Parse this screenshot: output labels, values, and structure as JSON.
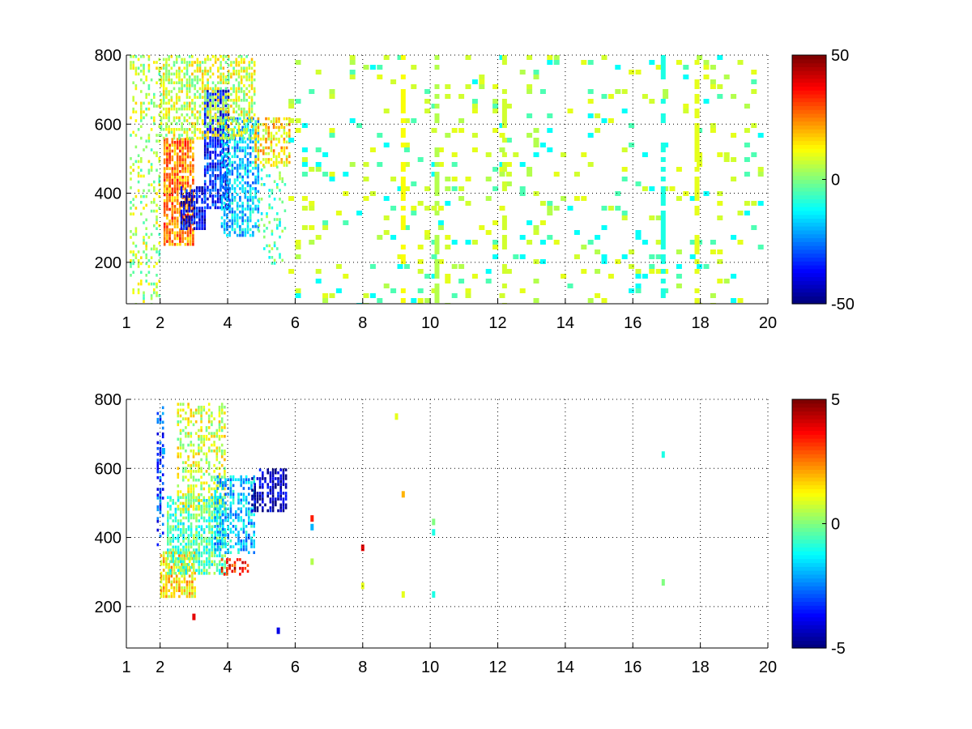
{
  "chart_data": [
    {
      "type": "heatmap",
      "title": "",
      "xlabel": "",
      "ylabel": "",
      "xlim": [
        1,
        20
      ],
      "ylim": [
        80,
        800
      ],
      "x_ticks": [
        1,
        2,
        4,
        6,
        8,
        10,
        12,
        14,
        16,
        18,
        20
      ],
      "x_tick_labels": [
        "1",
        "2",
        "4",
        "6",
        "8",
        "10",
        "12",
        "14",
        "16",
        "18",
        "20"
      ],
      "y_ticks": [
        200,
        400,
        600,
        800
      ],
      "y_tick_labels": [
        "200",
        "400",
        "600",
        "800"
      ],
      "grid": true,
      "colormap": "jet",
      "colorbar": {
        "range": [
          -50,
          50
        ],
        "ticks": [
          -50,
          0,
          50
        ],
        "tick_labels": [
          "-50",
          "0",
          "50"
        ]
      },
      "regions": [
        {
          "x": [
            2.1,
            3.0
          ],
          "y": [
            250,
            560
          ],
          "value": 25,
          "density": 0.8
        },
        {
          "x": [
            2.6,
            3.3
          ],
          "y": [
            300,
            420
          ],
          "value": -40,
          "density": 0.7
        },
        {
          "x": [
            3.3,
            4.0
          ],
          "y": [
            360,
            700
          ],
          "value": -35,
          "density": 0.75
        },
        {
          "x": [
            3.8,
            4.9
          ],
          "y": [
            280,
            620
          ],
          "value": -18,
          "density": 0.6
        },
        {
          "x": [
            2.0,
            4.8
          ],
          "y": [
            560,
            800
          ],
          "value": 8,
          "density": 0.55
        },
        {
          "x": [
            4.8,
            5.8
          ],
          "y": [
            480,
            620
          ],
          "value": 15,
          "density": 0.6
        },
        {
          "x": [
            1.1,
            2.0
          ],
          "y": [
            80,
            800
          ],
          "value": 5,
          "density": 0.25
        },
        {
          "x": [
            4.9,
            5.7
          ],
          "y": [
            200,
            480
          ],
          "value": -5,
          "density": 0.2
        }
      ],
      "scatter": {
        "x_range": [
          5.8,
          19.8
        ],
        "y_range": [
          80,
          800
        ],
        "values": [
          -12,
          5,
          10,
          -5,
          8
        ],
        "density": 0.12
      },
      "columns": [
        {
          "x": 9.2,
          "value": 12
        },
        {
          "x": 10.2,
          "value": 5
        },
        {
          "x": 12.2,
          "value": 8
        },
        {
          "x": 16.9,
          "value": -10
        },
        {
          "x": 17.9,
          "value": 10
        }
      ]
    },
    {
      "type": "heatmap",
      "title": "",
      "xlabel": "",
      "ylabel": "",
      "xlim": [
        1,
        20
      ],
      "ylim": [
        80,
        800
      ],
      "x_ticks": [
        1,
        2,
        4,
        6,
        8,
        10,
        12,
        14,
        16,
        18,
        20
      ],
      "x_tick_labels": [
        "1",
        "2",
        "4",
        "6",
        "8",
        "10",
        "12",
        "14",
        "16",
        "18",
        "20"
      ],
      "y_ticks": [
        200,
        400,
        600,
        800
      ],
      "y_tick_labels": [
        "200",
        "400",
        "600",
        "800"
      ],
      "grid": true,
      "colormap": "jet",
      "colorbar": {
        "range": [
          -5,
          5
        ],
        "ticks": [
          -5,
          0,
          5
        ],
        "tick_labels": [
          "-5",
          "0",
          "5"
        ]
      },
      "regions": [
        {
          "x": [
            2.0,
            3.0
          ],
          "y": [
            230,
            360
          ],
          "value": 1.5,
          "density": 0.75
        },
        {
          "x": [
            2.2,
            3.9
          ],
          "y": [
            300,
            520
          ],
          "value": -0.5,
          "density": 0.7
        },
        {
          "x": [
            2.5,
            3.9
          ],
          "y": [
            480,
            790
          ],
          "value": 0.8,
          "density": 0.45
        },
        {
          "x": [
            3.6,
            4.8
          ],
          "y": [
            360,
            580
          ],
          "value": -1.8,
          "density": 0.6
        },
        {
          "x": [
            4.7,
            5.7
          ],
          "y": [
            480,
            600
          ],
          "value": -4.5,
          "density": 0.6
        },
        {
          "x": [
            1.9,
            2.1
          ],
          "y": [
            380,
            780
          ],
          "value": -3,
          "density": 0.4
        },
        {
          "x": [
            3.8,
            4.6
          ],
          "y": [
            290,
            340
          ],
          "value": 3.5,
          "density": 0.35
        }
      ],
      "points": [
        {
          "x": 6.5,
          "y": 455,
          "value": 3.5
        },
        {
          "x": 6.5,
          "y": 430,
          "value": -2
        },
        {
          "x": 6.5,
          "y": 330,
          "value": 0.5
        },
        {
          "x": 8.0,
          "y": 370,
          "value": 4
        },
        {
          "x": 8.0,
          "y": 260,
          "value": 1
        },
        {
          "x": 9.0,
          "y": 750,
          "value": 1
        },
        {
          "x": 9.2,
          "y": 525,
          "value": 2
        },
        {
          "x": 9.2,
          "y": 235,
          "value": 1
        },
        {
          "x": 10.1,
          "y": 445,
          "value": 0
        },
        {
          "x": 10.1,
          "y": 415,
          "value": -1
        },
        {
          "x": 10.1,
          "y": 235,
          "value": -1
        },
        {
          "x": 16.9,
          "y": 640,
          "value": -1
        },
        {
          "x": 16.9,
          "y": 270,
          "value": 0
        },
        {
          "x": 5.5,
          "y": 130,
          "value": -4
        },
        {
          "x": 3.0,
          "y": 170,
          "value": 4
        },
        {
          "x": 2.1,
          "y": 650,
          "value": -2
        }
      ]
    }
  ]
}
